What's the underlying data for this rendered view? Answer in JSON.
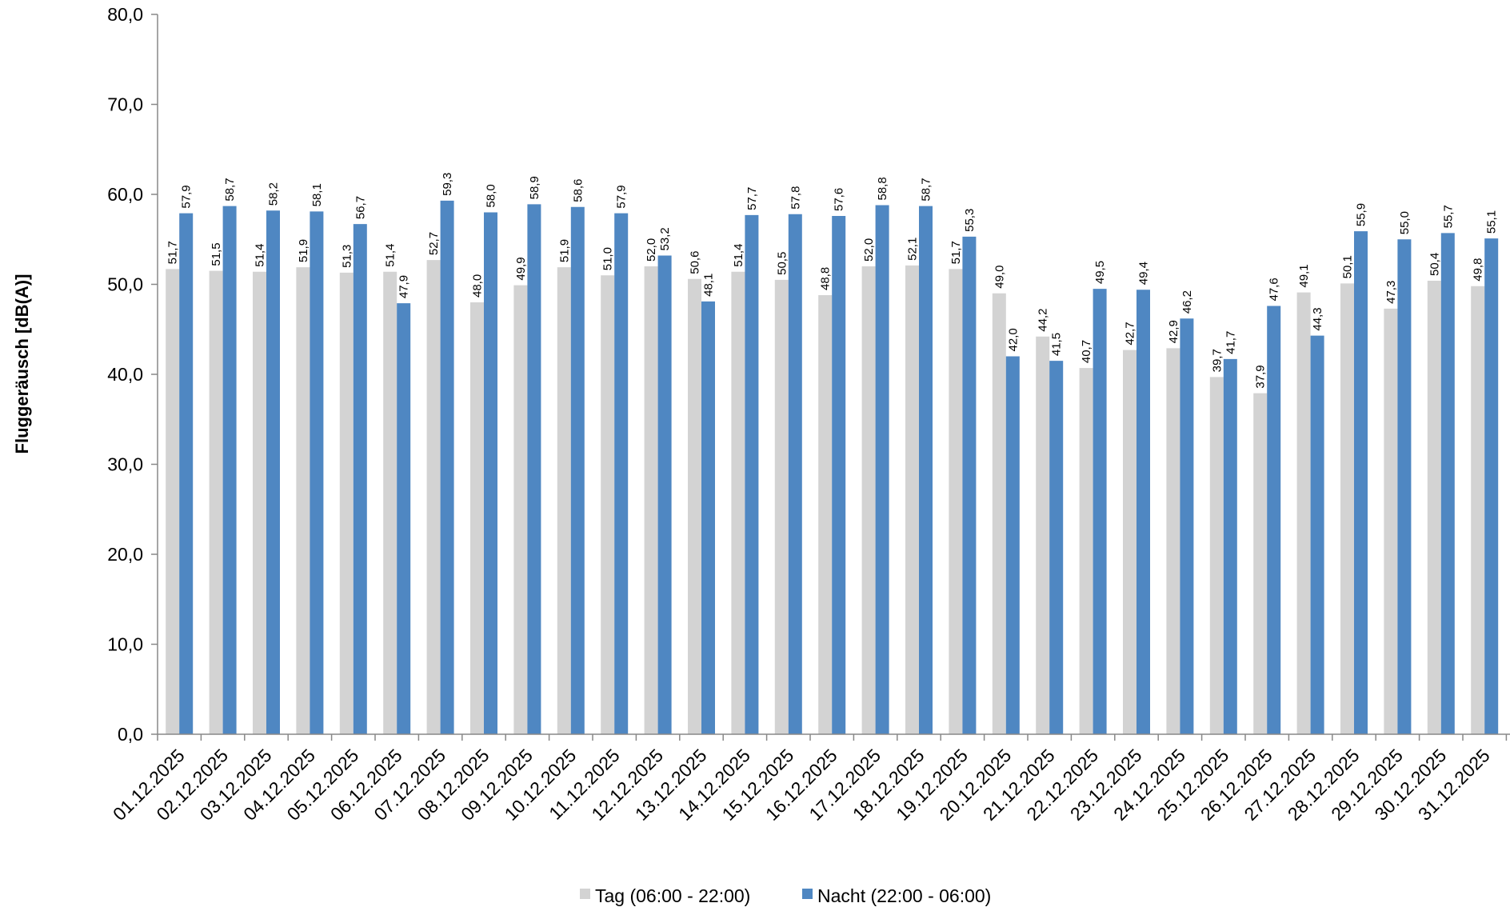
{
  "chart_data": {
    "type": "bar",
    "ylabel": "Fluggeräusch [dB(A)]",
    "ylim": [
      0,
      80
    ],
    "yticks": [
      "0,0",
      "10,0",
      "20,0",
      "30,0",
      "40,0",
      "50,0",
      "60,0",
      "70,0",
      "80,0"
    ],
    "grid": false,
    "legend_position": "bottom",
    "categories": [
      "01.12.2025",
      "02.12.2025",
      "03.12.2025",
      "04.12.2025",
      "05.12.2025",
      "06.12.2025",
      "07.12.2025",
      "08.12.2025",
      "09.12.2025",
      "10.12.2025",
      "11.12.2025",
      "12.12.2025",
      "13.12.2025",
      "14.12.2025",
      "15.12.2025",
      "16.12.2025",
      "17.12.2025",
      "18.12.2025",
      "19.12.2025",
      "20.12.2025",
      "21.12.2025",
      "22.12.2025",
      "23.12.2025",
      "24.12.2025",
      "25.12.2025",
      "26.12.2025",
      "27.12.2025",
      "28.12.2025",
      "29.12.2025",
      "30.12.2025",
      "31.12.2025"
    ],
    "series": [
      {
        "name": "Tag (06:00 - 22:00)",
        "color": "#d3d3d3",
        "values": [
          51.7,
          51.5,
          51.4,
          51.9,
          51.3,
          51.4,
          52.7,
          48.0,
          49.9,
          51.9,
          51.0,
          52.0,
          50.6,
          51.4,
          50.5,
          48.8,
          52.0,
          52.1,
          51.7,
          49.0,
          44.2,
          40.7,
          42.7,
          42.9,
          39.7,
          37.9,
          49.1,
          50.1,
          47.3,
          50.4,
          49.8
        ],
        "labels": [
          "51,7",
          "51,5",
          "51,4",
          "51,9",
          "51,3",
          "51,4",
          "52,7",
          "48,0",
          "49,9",
          "51,9",
          "51,0",
          "52,0",
          "50,6",
          "51,4",
          "50,5",
          "48,8",
          "52,0",
          "52,1",
          "51,7",
          "49,0",
          "44,2",
          "40,7",
          "42,7",
          "42,9",
          "39,7",
          "37,9",
          "49,1",
          "50,1",
          "47,3",
          "50,4",
          "49,8"
        ]
      },
      {
        "name": "Nacht (22:00 - 06:00)",
        "color": "#4f87c2",
        "values": [
          57.9,
          58.7,
          58.2,
          58.1,
          56.7,
          47.9,
          59.3,
          58.0,
          58.9,
          58.6,
          57.9,
          53.2,
          48.1,
          57.7,
          57.8,
          57.6,
          58.8,
          58.7,
          55.3,
          42.0,
          41.5,
          49.5,
          49.4,
          46.2,
          41.7,
          47.6,
          44.3,
          55.9,
          55.0,
          55.7,
          55.1
        ],
        "labels": [
          "57,9",
          "58,7",
          "58,2",
          "58,1",
          "56,7",
          "47,9",
          "59,3",
          "58,0",
          "58,9",
          "58,6",
          "57,9",
          "53,2",
          "48,1",
          "57,7",
          "57,8",
          "57,6",
          "58,8",
          "58,7",
          "55,3",
          "42,0",
          "41,5",
          "49,5",
          "49,4",
          "46,2",
          "41,7",
          "47,6",
          "44,3",
          "55,9",
          "55,0",
          "55,7",
          "55,1"
        ]
      }
    ]
  }
}
